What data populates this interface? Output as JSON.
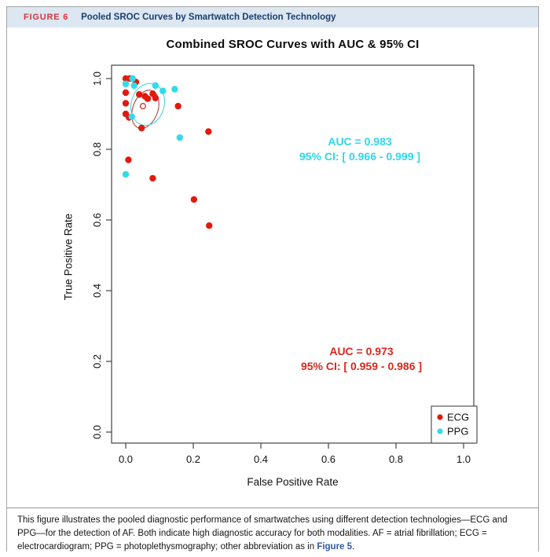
{
  "figure_header": {
    "label": "FIGURE 6",
    "title": "Pooled SROC Curves by Smartwatch Detection Technology"
  },
  "chart_data": {
    "type": "scatter",
    "title": "Combined SROC Curves with AUC & 95% CI",
    "xlabel": "False Positive Rate",
    "ylabel": "True Positive Rate",
    "xlim": [
      0.0,
      1.0
    ],
    "ylim": [
      0.0,
      1.0
    ],
    "grid": false,
    "x_ticks": [
      0.0,
      0.2,
      0.4,
      0.6,
      0.8,
      1.0
    ],
    "y_ticks": [
      0.0,
      0.2,
      0.4,
      0.6,
      0.8,
      1.0
    ],
    "series": [
      {
        "name": "ECG",
        "color": "#e2190f",
        "points": [
          [
            0.0,
            1.0
          ],
          [
            0.012,
            1.0
          ],
          [
            0.03,
            0.99
          ],
          [
            0.0,
            0.96
          ],
          [
            0.04,
            0.955
          ],
          [
            0.057,
            0.95
          ],
          [
            0.08,
            0.957
          ],
          [
            0.088,
            0.945
          ],
          [
            0.065,
            0.943
          ],
          [
            0.0,
            0.93
          ],
          [
            0.0,
            0.9
          ],
          [
            0.01,
            0.89
          ],
          [
            0.047,
            0.86
          ],
          [
            0.155,
            0.922
          ],
          [
            0.245,
            0.85
          ],
          [
            0.008,
            0.77
          ],
          [
            0.08,
            0.718
          ],
          [
            0.202,
            0.658
          ],
          [
            0.247,
            0.584
          ]
        ]
      },
      {
        "name": "PPG",
        "color": "#31dbe9",
        "points": [
          [
            0.02,
            1.0
          ],
          [
            0.0,
            0.985
          ],
          [
            0.025,
            0.98
          ],
          [
            0.088,
            0.98
          ],
          [
            0.11,
            0.965
          ],
          [
            0.145,
            0.97
          ],
          [
            0.018,
            0.892
          ],
          [
            0.16,
            0.833
          ],
          [
            0.0,
            0.729
          ]
        ]
      }
    ],
    "summary_points": [
      {
        "x": 0.051,
        "y": 0.922,
        "color": "#c2382e",
        "filled": false
      }
    ],
    "ellipses": [
      {
        "name": "ecg",
        "cx": 0.058,
        "cy": 0.913,
        "rx": 0.037,
        "ry": 0.056,
        "rotate_deg": 20,
        "color": "#b5423a"
      },
      {
        "name": "ppg",
        "cx": 0.065,
        "cy": 0.927,
        "rx": 0.049,
        "ry": 0.06,
        "rotate_deg": 15,
        "color": "#4ad6e6"
      }
    ],
    "annotations": {
      "ppg": {
        "auc": "AUC = 0.983",
        "ci": "95% CI: [ 0.966 - 0.999 ]",
        "color": "#2ed7e8",
        "x": 0.69,
        "y": 0.8
      },
      "ecg": {
        "auc": "AUC = 0.973",
        "ci": "95% CI: [ 0.959 - 0.986 ]",
        "color": "#d9281e",
        "x": 0.7,
        "y": 0.21
      }
    },
    "legend": {
      "position": "bottom-right",
      "entries": [
        {
          "label": "ECG",
          "color": "#e2190f"
        },
        {
          "label": "PPG",
          "color": "#31dbe9"
        }
      ]
    }
  },
  "caption": {
    "before": "This figure illustrates the pooled diagnostic performance of smartwatches using different detection technologies—ECG and PPG—for the detection of AF. Both indicate high diagnostic accuracy for both modalities. AF = atrial fibrillation; ECG = electrocardiogram; PPG = photoplethysmography; other abbreviation as in ",
    "link": "Figure 5",
    "after": "."
  },
  "colors": {
    "header_bg": "#dce7f2",
    "header_label": "#d5373d",
    "header_title": "#1c3d6e",
    "frame_border": "#a3a3a3",
    "axis": "#444444",
    "link": "#2b5aa5"
  }
}
